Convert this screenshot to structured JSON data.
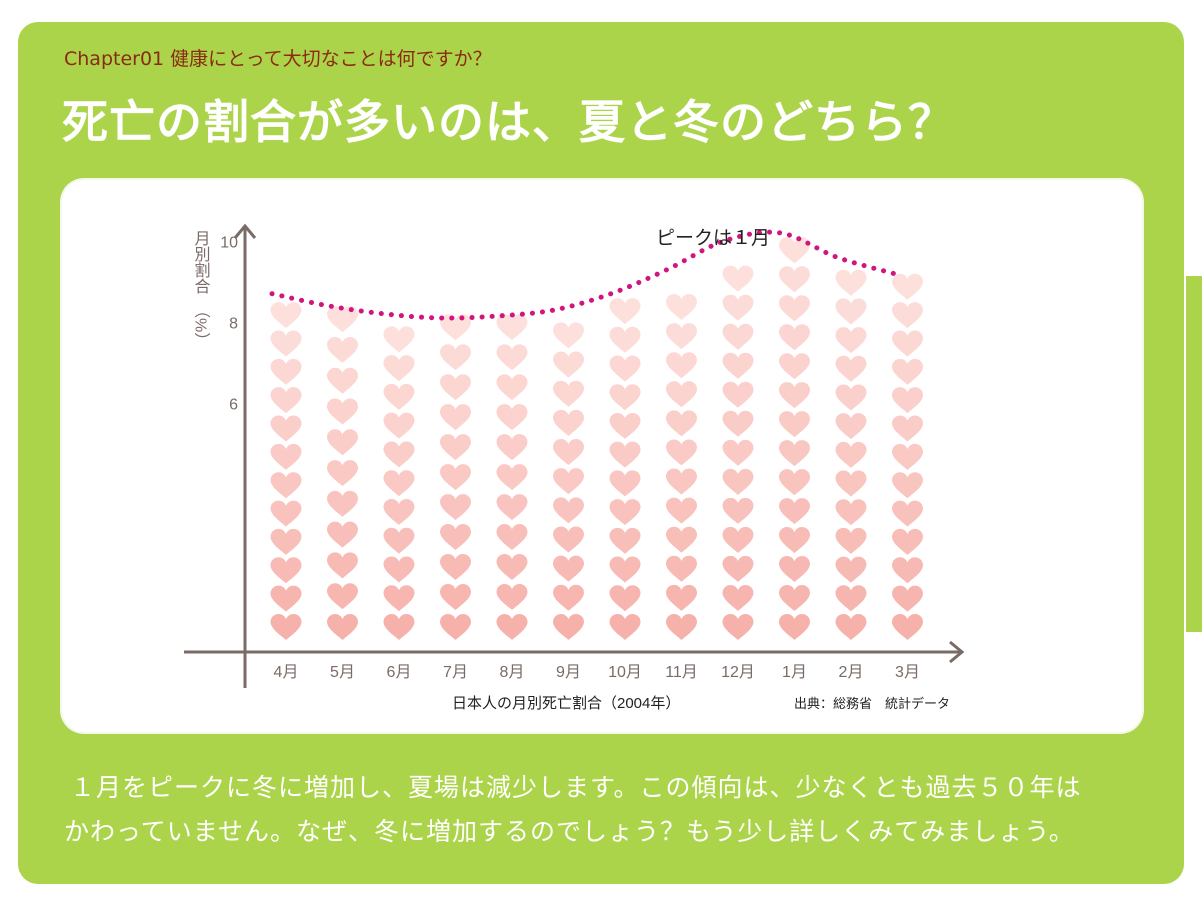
{
  "header": {
    "chapter": "Chapter01 健康にとって大切なことは何ですか？",
    "title": "死亡の割合が多いのは、夏と冬のどちら？"
  },
  "colors": {
    "panel": "#acd44a",
    "heart_light": "#fde0dc",
    "heart_dark": "#f6b1ab",
    "dotted_line": "#d2157e",
    "axis": "#7a6b66"
  },
  "chart_data": {
    "type": "bar",
    "title": "日本人の月別死亡割合（2004年）",
    "source": "出典：総務省　統計データ",
    "ylabel": "月別割合　（%）",
    "yticks": [
      "10",
      "8",
      "6"
    ],
    "ylim": [
      0,
      10.5
    ],
    "categories": [
      "4月",
      "5月",
      "6月",
      "7月",
      "8月",
      "9月",
      "10月",
      "11月",
      "12月",
      "1月",
      "2月",
      "3月"
    ],
    "series": [
      {
        "values": [
          8.2,
          8.1,
          7.6,
          7.9,
          7.9,
          7.7,
          8.3,
          8.4,
          9.1,
          9.8,
          9.0,
          8.9
        ]
      }
    ],
    "trend_line": [
      8.6,
      8.3,
      8.1,
      8.0,
      8.05,
      8.2,
      8.6,
      9.2,
      9.9,
      10.1,
      9.5,
      9.1
    ],
    "annotation": "ピークは１月",
    "marker": "heart"
  },
  "notes": {
    "line1": "１月をピークに冬に増加し、夏場は減少します。この傾向は、少なくとも過去５０年は",
    "line2": "かわっていません。なぜ、冬に増加するのでしょう？もう少し詳しくみてみましょう。"
  }
}
